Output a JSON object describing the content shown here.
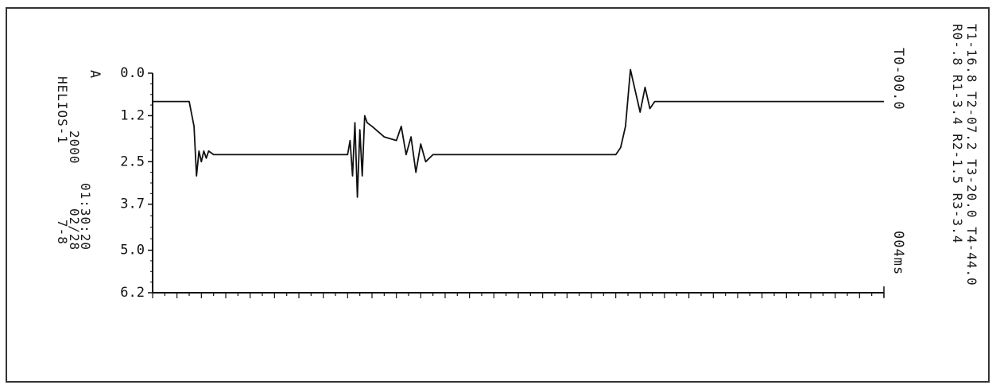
{
  "header": {
    "line1": "T1-16.8 T2-07.2 T3-20.0 T4-44.0",
    "line2": "R0-.8  R1-3.4  R2-1.5  R3-3.4",
    "t0": "T0-00.0",
    "time_unit": "004ms"
  },
  "info": {
    "time": "01:30:20",
    "date": "02/28",
    "year": "2000",
    "device": "HELIOS-1",
    "channel": "7-8",
    "axis_letter": "A"
  },
  "colors": {
    "trace": "#111111",
    "frame": "#222222"
  },
  "chart_data": {
    "type": "line",
    "title": "",
    "xlabel": "",
    "ylabel": "A",
    "ylim": [
      0,
      6.2
    ],
    "y_inverted": true,
    "y_ticks": [
      "0.0",
      "1.2",
      "2.5",
      "3.7",
      "5.0",
      "6.2"
    ],
    "x_unit": "004ms",
    "x": [
      0,
      1.5,
      1.7,
      1.8,
      1.9,
      2.0,
      2.1,
      2.2,
      2.3,
      2.5,
      3.0,
      7.0,
      8.0,
      8.1,
      8.2,
      8.3,
      8.4,
      8.5,
      8.6,
      8.7,
      8.8,
      9.0,
      9.5,
      10.0,
      10.2,
      10.4,
      10.6,
      10.8,
      11.0,
      11.2,
      11.5,
      12.0,
      19.0,
      19.2,
      19.4,
      19.6,
      19.8,
      20.0,
      20.2,
      20.4,
      20.6,
      21.0,
      30.0
    ],
    "y": [
      0.8,
      0.8,
      1.5,
      2.9,
      2.2,
      2.5,
      2.2,
      2.4,
      2.2,
      2.3,
      2.3,
      2.3,
      2.3,
      1.9,
      2.9,
      1.4,
      3.5,
      1.6,
      2.9,
      1.2,
      1.4,
      1.5,
      1.8,
      1.9,
      1.5,
      2.3,
      1.8,
      2.8,
      2.0,
      2.5,
      2.3,
      2.3,
      2.3,
      2.1,
      1.5,
      -0.1,
      0.5,
      1.1,
      0.4,
      1.0,
      0.8,
      0.8,
      0.8
    ]
  }
}
